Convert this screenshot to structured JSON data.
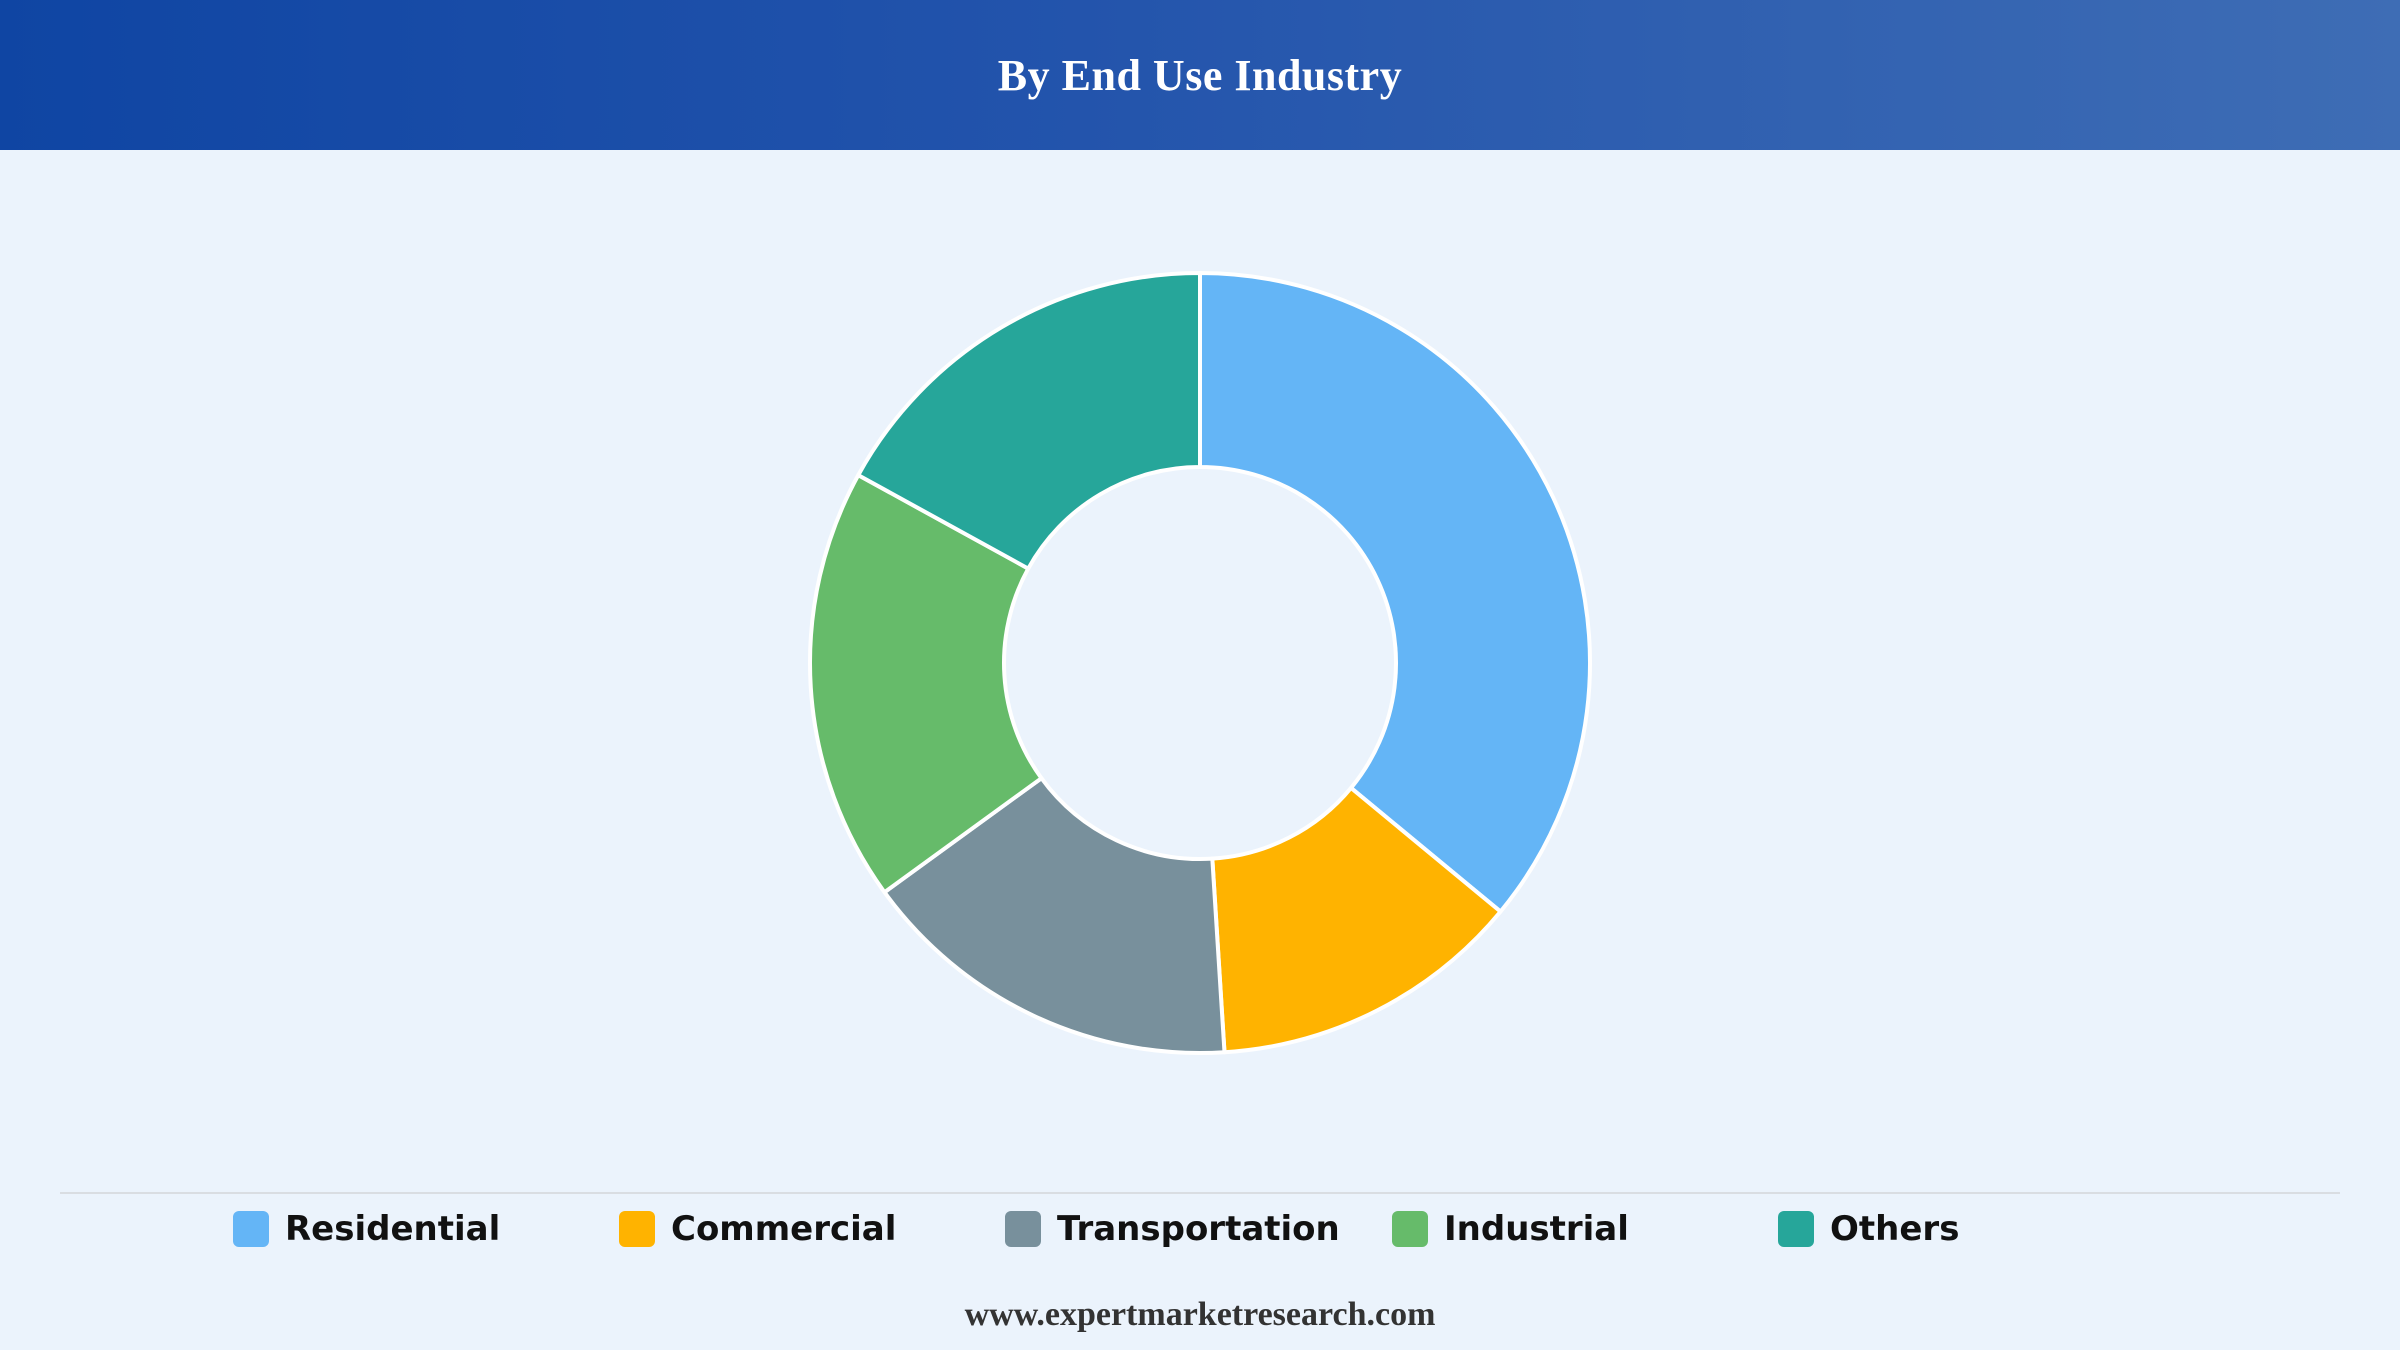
{
  "header": {
    "title": "By End Use Industry"
  },
  "chart_data": {
    "type": "pie",
    "variant": "donut",
    "title": "By End Use Industry",
    "categories": [
      "Residential",
      "Commercial",
      "Transportation",
      "Industrial",
      "Others"
    ],
    "values": [
      36,
      13,
      16,
      18,
      17
    ],
    "unit": "%",
    "colors": [
      "#64b5f6",
      "#ffb300",
      "#78909c",
      "#66bb6a",
      "#26a69a"
    ],
    "legend_position": "bottom",
    "start_angle_deg": 0,
    "direction": "clockwise"
  },
  "legend": {
    "items": [
      {
        "label": "Residential",
        "color": "#64b5f6"
      },
      {
        "label": "Commercial",
        "color": "#ffb300"
      },
      {
        "label": "Transportation",
        "color": "#78909c"
      },
      {
        "label": "Industrial",
        "color": "#66bb6a"
      },
      {
        "label": "Others",
        "color": "#26a69a"
      }
    ]
  },
  "footer": {
    "text": "www.expertmarketresearch.com"
  }
}
